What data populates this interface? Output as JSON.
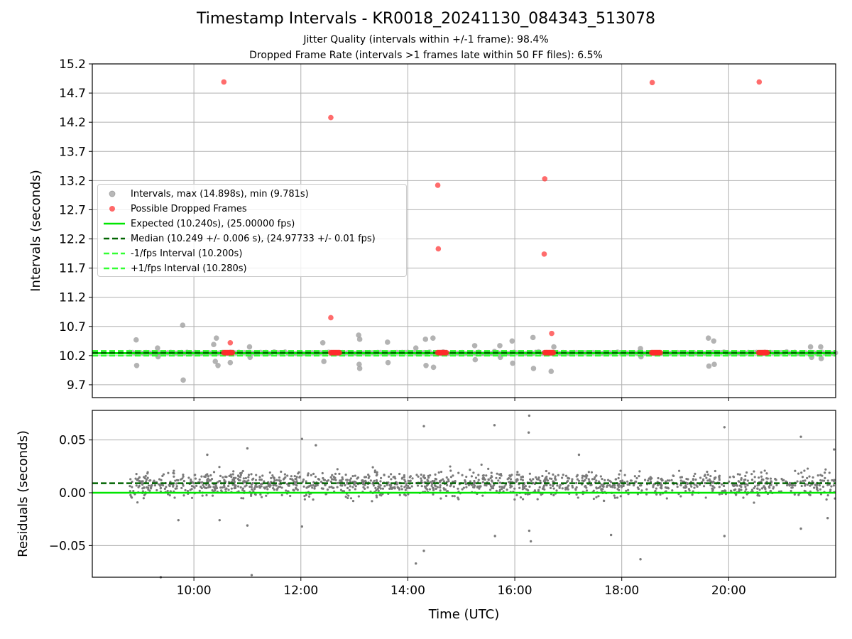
{
  "chart_data": [
    {
      "type": "scatter",
      "title": "Timestamp Intervals - KR0018_20241130_084343_513078",
      "subtitle_1": "Jitter Quality (intervals within +/-1 frame): 98.4%",
      "subtitle_2": "Dropped Frame Rate (intervals >1 frames late within 50 FF files): 6.5%",
      "xlabel": "",
      "ylabel": "Intervals (seconds)",
      "ylim": [
        9.48,
        15.2
      ],
      "yticks": [
        "9.7",
        "10.2",
        "10.7",
        "11.2",
        "11.7",
        "12.2",
        "12.7",
        "13.2",
        "13.7",
        "14.2",
        "14.7",
        "15.2"
      ],
      "xticks": [
        "10:00",
        "12:00",
        "14:00",
        "16:00",
        "18:00",
        "20:00"
      ],
      "x_range_hours": [
        8.1,
        22.0
      ],
      "grid": true,
      "legend_position": "center-left",
      "legend": [
        "Intervals, max (14.898s), min (9.781s)",
        "Possible Dropped Frames",
        "Expected (10.240s), (25.00000 fps)",
        "Median (10.249 +/- 0.006 s), (24.97733 +/- 0.01 fps)",
        "-1/fps Interval (10.200s)",
        "+1/fps Interval (10.280s)"
      ],
      "lines": {
        "expected": 10.24,
        "median": 10.249,
        "minus_interval": 10.2,
        "plus_interval": 10.28
      },
      "intervals_outliers": [
        {
          "t": 8.92,
          "v": 10.47
        },
        {
          "t": 8.93,
          "v": 10.03
        },
        {
          "t": 9.32,
          "v": 10.33
        },
        {
          "t": 9.33,
          "v": 10.18
        },
        {
          "t": 9.79,
          "v": 10.72
        },
        {
          "t": 9.8,
          "v": 9.78
        },
        {
          "t": 10.37,
          "v": 10.39
        },
        {
          "t": 10.4,
          "v": 10.1
        },
        {
          "t": 10.42,
          "v": 10.5
        },
        {
          "t": 10.45,
          "v": 10.03
        },
        {
          "t": 10.68,
          "v": 10.08
        },
        {
          "t": 11.04,
          "v": 10.35
        },
        {
          "t": 11.05,
          "v": 10.17
        },
        {
          "t": 12.41,
          "v": 10.42
        },
        {
          "t": 12.43,
          "v": 10.1
        },
        {
          "t": 13.08,
          "v": 10.55
        },
        {
          "t": 13.1,
          "v": 10.48
        },
        {
          "t": 13.09,
          "v": 10.05
        },
        {
          "t": 13.1,
          "v": 9.98
        },
        {
          "t": 13.62,
          "v": 10.43
        },
        {
          "t": 13.63,
          "v": 10.08
        },
        {
          "t": 14.15,
          "v": 10.33
        },
        {
          "t": 14.33,
          "v": 10.48
        },
        {
          "t": 14.34,
          "v": 10.03
        },
        {
          "t": 14.47,
          "v": 10.5
        },
        {
          "t": 14.48,
          "v": 10.0
        },
        {
          "t": 15.25,
          "v": 10.37
        },
        {
          "t": 15.26,
          "v": 10.13
        },
        {
          "t": 15.62,
          "v": 10.27
        },
        {
          "t": 15.72,
          "v": 10.37
        },
        {
          "t": 15.73,
          "v": 10.17
        },
        {
          "t": 15.95,
          "v": 10.45
        },
        {
          "t": 15.96,
          "v": 10.07
        },
        {
          "t": 16.34,
          "v": 10.51
        },
        {
          "t": 16.35,
          "v": 9.98
        },
        {
          "t": 16.73,
          "v": 10.35
        },
        {
          "t": 16.68,
          "v": 9.93
        },
        {
          "t": 18.35,
          "v": 10.32
        },
        {
          "t": 18.36,
          "v": 10.18
        },
        {
          "t": 19.62,
          "v": 10.5
        },
        {
          "t": 19.63,
          "v": 10.02
        },
        {
          "t": 19.72,
          "v": 10.45
        },
        {
          "t": 19.73,
          "v": 10.05
        },
        {
          "t": 21.53,
          "v": 10.35
        },
        {
          "t": 21.55,
          "v": 10.17
        },
        {
          "t": 21.72,
          "v": 10.35
        },
        {
          "t": 21.73,
          "v": 10.15
        }
      ],
      "dropped_frames": [
        {
          "t": 10.56,
          "v": 14.89
        },
        {
          "t": 10.68,
          "v": 10.42
        },
        {
          "t": 12.56,
          "v": 14.28
        },
        {
          "t": 12.56,
          "v": 10.85
        },
        {
          "t": 14.56,
          "v": 13.12
        },
        {
          "t": 14.57,
          "v": 12.03
        },
        {
          "t": 16.56,
          "v": 13.23
        },
        {
          "t": 16.55,
          "v": 11.94
        },
        {
          "t": 16.69,
          "v": 10.58
        },
        {
          "t": 18.57,
          "v": 14.88
        },
        {
          "t": 20.57,
          "v": 14.89
        }
      ],
      "dropped_frame_clusters": [
        {
          "t_start": 10.56,
          "t_end": 10.72,
          "v": 10.25
        },
        {
          "t_start": 12.56,
          "t_end": 12.72,
          "v": 10.25
        },
        {
          "t_start": 14.56,
          "t_end": 14.72,
          "v": 10.25
        },
        {
          "t_start": 16.56,
          "t_end": 16.72,
          "v": 10.25
        },
        {
          "t_start": 18.56,
          "t_end": 18.72,
          "v": 10.25
        },
        {
          "t_start": 20.56,
          "t_end": 20.72,
          "v": 10.25
        }
      ],
      "series_colors": {
        "intervals": "#a6a6a6",
        "dropped": "#ff3b3b",
        "expected": "#00e600",
        "median": "#006400",
        "bounds": "#33ff33"
      }
    },
    {
      "type": "scatter",
      "xlabel": "Time (UTC)",
      "ylabel": "Residuals (seconds)",
      "ylim": [
        -0.08,
        0.078
      ],
      "yticks": [
        "−0.05",
        "0.00",
        "0.05"
      ],
      "xticks": [
        "10:00",
        "12:00",
        "14:00",
        "16:00",
        "18:00",
        "20:00"
      ],
      "x_range_hours": [
        8.1,
        22.0
      ],
      "grid": true,
      "lines": {
        "zero": 0.0,
        "median_offset": 0.009
      },
      "band": {
        "t_start": 8.8,
        "t_end": 22.0,
        "center": 0.008,
        "spread": 0.022
      },
      "residual_outliers": [
        {
          "t": 9.38,
          "v": -0.08
        },
        {
          "t": 9.71,
          "v": -0.026
        },
        {
          "t": 10.25,
          "v": 0.036
        },
        {
          "t": 10.48,
          "v": -0.026
        },
        {
          "t": 11.0,
          "v": 0.042
        },
        {
          "t": 11.0,
          "v": -0.031
        },
        {
          "t": 11.08,
          "v": -0.078
        },
        {
          "t": 12.02,
          "v": 0.051
        },
        {
          "t": 12.02,
          "v": -0.032
        },
        {
          "t": 12.28,
          "v": 0.045
        },
        {
          "t": 14.15,
          "v": -0.067
        },
        {
          "t": 14.3,
          "v": 0.063
        },
        {
          "t": 14.3,
          "v": -0.055
        },
        {
          "t": 15.62,
          "v": 0.064
        },
        {
          "t": 15.63,
          "v": -0.041
        },
        {
          "t": 16.27,
          "v": 0.073
        },
        {
          "t": 16.26,
          "v": 0.057
        },
        {
          "t": 16.27,
          "v": -0.036
        },
        {
          "t": 16.3,
          "v": -0.046
        },
        {
          "t": 17.2,
          "v": 0.036
        },
        {
          "t": 17.8,
          "v": -0.04
        },
        {
          "t": 18.35,
          "v": -0.063
        },
        {
          "t": 19.92,
          "v": 0.062
        },
        {
          "t": 19.92,
          "v": -0.041
        },
        {
          "t": 21.35,
          "v": 0.053
        },
        {
          "t": 21.35,
          "v": -0.034
        },
        {
          "t": 21.85,
          "v": -0.024
        },
        {
          "t": 21.97,
          "v": 0.041
        }
      ],
      "series_colors": {
        "residuals": "#7a7a7a",
        "zero": "#00e600",
        "median": "#006400"
      }
    }
  ]
}
